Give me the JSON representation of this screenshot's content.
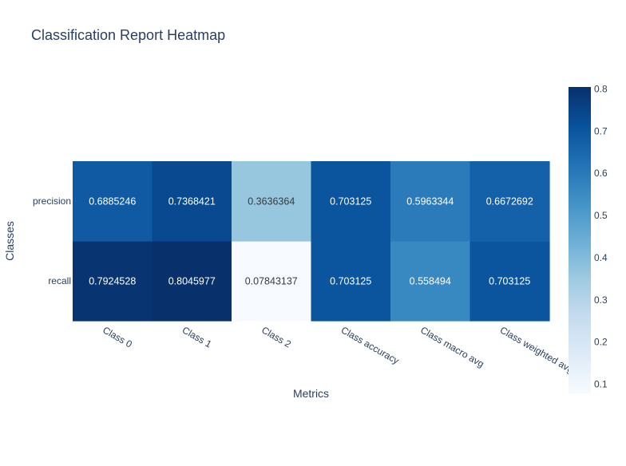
{
  "chart_data": {
    "type": "heatmap",
    "title": "Classification Report Heatmap",
    "xlabel": "Metrics",
    "ylabel": "Classes",
    "x": [
      "Class 0",
      "Class 1",
      "Class 2",
      "Class accuracy",
      "Class macro avg",
      "Class weighted avg"
    ],
    "y": [
      "recall",
      "precision"
    ],
    "z": [
      [
        0.7924528,
        0.8045977,
        0.07843137,
        0.703125,
        0.558494,
        0.703125
      ],
      [
        0.6885246,
        0.7368421,
        0.3636364,
        0.703125,
        0.5963344,
        0.6672692
      ]
    ],
    "text": [
      [
        "0.7924528",
        "0.8045977",
        "0.07843137",
        "0.703125",
        "0.558494",
        "0.703125"
      ],
      [
        "0.6885246",
        "0.7368421",
        "0.3636364",
        "0.703125",
        "0.5963344",
        "0.6672692"
      ]
    ],
    "colorscale": "Blues",
    "zmin": 0.07843137,
    "zmax": 0.8045977,
    "colorbar_ticks": [
      0.1,
      0.2,
      0.3,
      0.4,
      0.5,
      0.6,
      0.7,
      0.8
    ]
  }
}
